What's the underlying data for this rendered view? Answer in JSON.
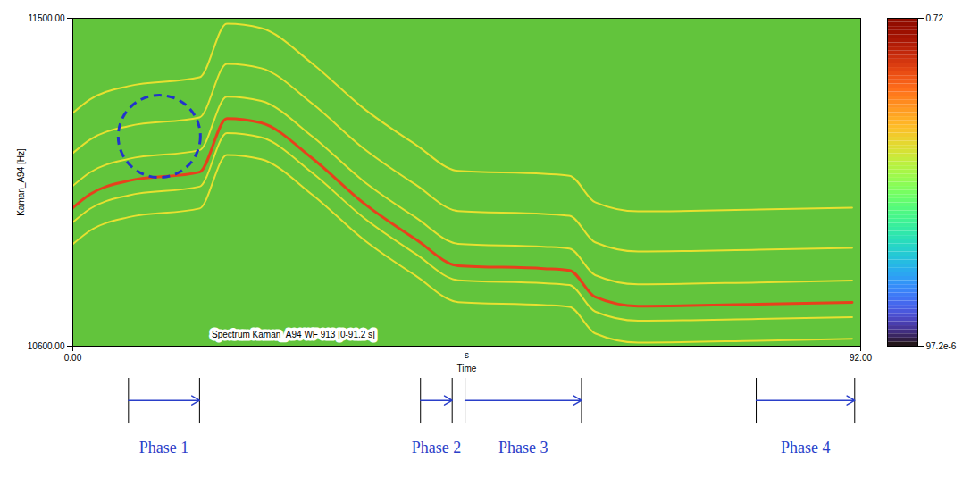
{
  "chart_data": {
    "type": "spectrogram",
    "title": "Spectrum Kaman_A94 WF 913 [0-91.2 s]",
    "x_label": "Time",
    "x_unit": "s",
    "y_label": "Kaman_A94 [Hz]",
    "xlim": [
      0,
      92
    ],
    "ylim": [
      10600,
      11500
    ],
    "xticks": [
      {
        "value": 0,
        "label": "0.00"
      },
      {
        "value": 92,
        "label": "92.00"
      }
    ],
    "yticks": [
      {
        "value": 10600,
        "label": "10600.00"
      },
      {
        "value": 11500,
        "label": "11500.00"
      }
    ],
    "x": [
      0,
      2,
      6.5,
      14.8,
      18,
      22,
      28,
      34,
      40,
      45,
      55,
      58,
      61,
      66,
      80,
      91
    ],
    "series": [
      {
        "color": "#e8e030",
        "values": [
          11240,
          11277,
          11314,
          11338,
          11485,
          11473,
          11375,
          11252,
          11154,
          11081,
          11073,
          11068,
          10995,
          10970,
          10975,
          10980
        ]
      },
      {
        "color": "#e8e030",
        "values": [
          11130,
          11167,
          11204,
          11228,
          11375,
          11363,
          11265,
          11142,
          11044,
          10971,
          10963,
          10958,
          10885,
          10860,
          10865,
          10870
        ]
      },
      {
        "color": "#e8e030",
        "values": [
          11040,
          11077,
          11114,
          11138,
          11285,
          11273,
          11175,
          11052,
          10954,
          10881,
          10873,
          10868,
          10795,
          10770,
          10775,
          10780
        ]
      },
      {
        "color": "#e8401c",
        "values": [
          10980,
          11017,
          11054,
          11078,
          11225,
          11213,
          11115,
          10992,
          10894,
          10821,
          10813,
          10808,
          10735,
          10710,
          10715,
          10720
        ]
      },
      {
        "color": "#e8e030",
        "values": [
          10940,
          10977,
          11014,
          11038,
          11185,
          11173,
          11075,
          10952,
          10854,
          10781,
          10773,
          10768,
          10695,
          10670,
          10675,
          10680
        ]
      },
      {
        "color": "#e8e030",
        "values": [
          10880,
          10917,
          10954,
          10978,
          11125,
          11113,
          11015,
          10892,
          10794,
          10721,
          10713,
          10708,
          10635,
          10610,
          10615,
          10620
        ]
      }
    ],
    "highlight": {
      "x": 10.1,
      "y": 11176
    },
    "phases": [
      {
        "label": "Phase 1",
        "start": 6.5,
        "end": 14.8
      },
      {
        "label": "Phase 2",
        "start": 40.6,
        "end": 44.3
      },
      {
        "label": "Phase 3",
        "start": 45.8,
        "end": 59.4
      },
      {
        "label": "Phase 4",
        "start": 79.8,
        "end": 91.3
      }
    ],
    "colorbar": {
      "lim": [
        9.72e-05,
        0.72
      ],
      "ticks": [
        0.72,
        {
          "value": 9.72e-05,
          "label": "97.2e-6"
        }
      ]
    }
  }
}
